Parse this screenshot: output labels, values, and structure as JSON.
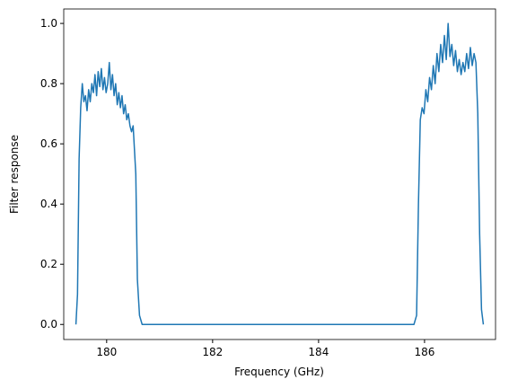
{
  "chart_data": {
    "type": "line",
    "xlabel": "Frequency (GHz)",
    "ylabel": "Filter response",
    "xlim": [
      179.19,
      187.34
    ],
    "ylim": [
      -0.05,
      1.048
    ],
    "xticks": [
      180,
      182,
      184,
      186
    ],
    "yticks": [
      {
        "value": 0,
        "label": "0.0"
      },
      0.2,
      0.4,
      0.6,
      0.8,
      {
        "value": 1,
        "label": "1.0"
      }
    ],
    "x": [
      179.42,
      179.45,
      179.48,
      179.51,
      179.54,
      179.57,
      179.6,
      179.63,
      179.66,
      179.69,
      179.72,
      179.75,
      179.78,
      179.81,
      179.84,
      179.87,
      179.9,
      179.93,
      179.96,
      179.99,
      180.02,
      180.05,
      180.08,
      180.11,
      180.14,
      180.17,
      180.2,
      180.23,
      180.26,
      180.29,
      180.32,
      180.35,
      180.38,
      180.41,
      180.44,
      180.47,
      180.5,
      180.55,
      180.58,
      180.62,
      180.67,
      185.8,
      185.85,
      185.885,
      185.92,
      185.955,
      185.99,
      186.025,
      186.06,
      186.095,
      186.13,
      186.165,
      186.2,
      186.235,
      186.27,
      186.305,
      186.34,
      186.375,
      186.41,
      186.445,
      186.48,
      186.515,
      186.55,
      186.585,
      186.62,
      186.655,
      186.69,
      186.725,
      186.76,
      186.795,
      186.83,
      186.865,
      186.9,
      186.935,
      186.97,
      187.005,
      187.04,
      187.075,
      187.11
    ],
    "series": [
      {
        "color": "#1f77b4",
        "values": [
          0,
          0.1,
          0.55,
          0.72,
          0.8,
          0.74,
          0.76,
          0.71,
          0.78,
          0.74,
          0.8,
          0.77,
          0.83,
          0.76,
          0.84,
          0.79,
          0.85,
          0.78,
          0.82,
          0.77,
          0.8,
          0.87,
          0.78,
          0.83,
          0.76,
          0.8,
          0.73,
          0.77,
          0.72,
          0.76,
          0.7,
          0.73,
          0.68,
          0.7,
          0.66,
          0.64,
          0.66,
          0.5,
          0.15,
          0.03,
          0,
          0,
          0.03,
          0.4,
          0.68,
          0.72,
          0.7,
          0.78,
          0.74,
          0.82,
          0.78,
          0.86,
          0.8,
          0.9,
          0.84,
          0.93,
          0.87,
          0.96,
          0.88,
          1.0,
          0.89,
          0.93,
          0.86,
          0.91,
          0.84,
          0.88,
          0.83,
          0.87,
          0.84,
          0.9,
          0.85,
          0.92,
          0.86,
          0.9,
          0.87,
          0.7,
          0.3,
          0.05,
          0
        ]
      }
    ]
  }
}
